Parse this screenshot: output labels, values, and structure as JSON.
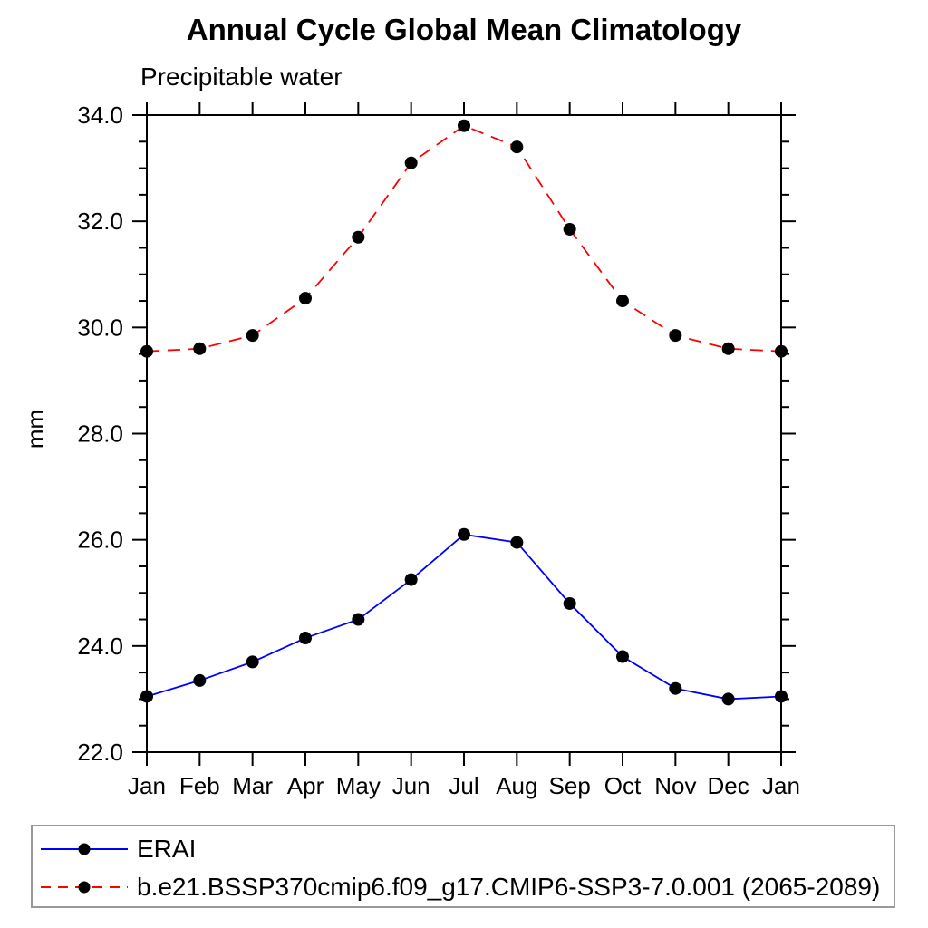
{
  "chart_data": {
    "type": "line",
    "title": "Annual Cycle Global Mean Climatology",
    "subtitle": "Precipitable water",
    "ylabel": "mm",
    "categories": [
      "Jan",
      "Feb",
      "Mar",
      "Apr",
      "May",
      "Jun",
      "Jul",
      "Aug",
      "Sep",
      "Oct",
      "Nov",
      "Dec",
      "Jan"
    ],
    "series": [
      {
        "name": "ERAI",
        "color": "#0000ff",
        "line_style": "solid",
        "marker": "filled-circle",
        "marker_color": "#000000",
        "values": [
          23.05,
          23.35,
          23.7,
          24.15,
          24.5,
          25.25,
          26.1,
          25.95,
          24.8,
          23.8,
          23.2,
          23.0,
          23.05
        ]
      },
      {
        "name": "b.e21.BSSP370cmip6.f09_g17.CMIP6-SSP3-7.0.001 (2065-2089)",
        "color": "#ff0000",
        "line_style": "dashed",
        "marker": "filled-circle",
        "marker_color": "#000000",
        "values": [
          29.55,
          29.6,
          29.85,
          30.55,
          31.7,
          33.1,
          33.8,
          33.4,
          31.85,
          30.5,
          29.85,
          29.6,
          29.55
        ]
      }
    ],
    "ylim": [
      22.0,
      34.0
    ],
    "ytick_step": 2.0,
    "ytick_minor_step": 0.5,
    "ytick_decimals": 1,
    "grid": false,
    "legend_position": "bottom-box",
    "axis_color": "#000000",
    "legend_border_color": "#999999"
  }
}
